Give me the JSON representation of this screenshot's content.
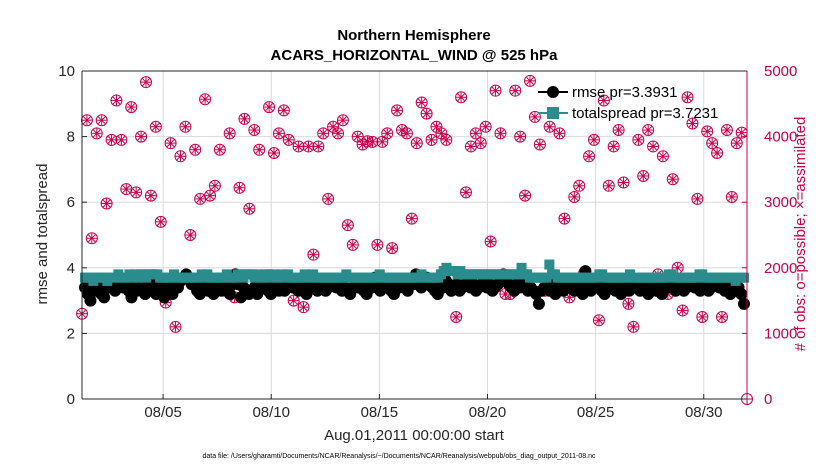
{
  "chart_data": {
    "type": "line",
    "title": "Northern Hemisphere",
    "subtitle": "ACARS_HORIZONTAL_WIND @ 525 hPa",
    "xlabel": "Aug.01,2011 00:00:00 start",
    "ylabel": "rmse and totalspread",
    "ylabel_right": "# of obs: o=possible; ×=assimilated",
    "footnote": "data file: /Users/gharamti/Documents/NCAR/Reanalysis/~/Documents/NCAR/Reanalysis/webpub/obs_diag_output_2011-08.nc",
    "xlim": [
      "2011-08-01 06:00",
      "2011-09-01 00:00"
    ],
    "ylim": [
      0,
      10
    ],
    "ylim_right": [
      0,
      5000
    ],
    "xticks": [
      "08/05",
      "08/10",
      "08/15",
      "08/20",
      "08/25",
      "08/30"
    ],
    "xtick_values": [
      "2011-08-05",
      "2011-08-10",
      "2011-08-15",
      "2011-08-20",
      "2011-08-25",
      "2011-08-30"
    ],
    "yticks": [
      "0",
      "2",
      "4",
      "6",
      "8",
      "10"
    ],
    "yticks_right": [
      "0",
      "1000",
      "2000",
      "3000",
      "4000",
      "5000"
    ],
    "grid": true,
    "legend_position": "top-right",
    "series": [
      {
        "name": "rmse pr=3.3931",
        "axis": "left",
        "color": "#000000",
        "marker": "circle",
        "values": [
          3.4,
          3.2,
          3.0,
          3.4,
          3.3,
          3.5,
          3.2,
          3.1,
          3.5,
          3.4,
          3.6,
          3.3,
          3.6,
          3.5,
          3.4,
          3.6,
          3.3,
          3.1,
          3.5,
          3.3,
          3.4,
          3.6,
          3.2,
          3.4,
          3.6,
          3.3,
          3.2,
          3.5,
          3.3,
          3.1,
          3.6,
          3.4,
          3.2,
          3.5,
          3.4,
          3.6,
          3.7,
          3.8,
          3.7,
          3.5,
          3.6,
          3.3,
          3.2,
          3.6,
          3.4,
          3.3,
          3.4,
          3.2,
          3.5,
          3.4,
          3.3,
          3.4,
          3.6,
          3.2,
          3.5,
          3.8,
          3.5,
          3.1,
          3.4,
          3.3,
          3.2,
          3.3,
          3.4,
          3.2,
          3.5,
          3.4,
          3.5,
          3.3,
          3.2,
          3.4,
          3.5,
          3.3,
          3.4,
          3.3,
          3.6,
          3.5,
          3.4,
          3.5,
          3.3,
          3.4,
          3.4,
          3.2,
          3.5,
          3.4,
          3.6,
          3.3,
          3.4,
          3.5,
          3.3,
          3.4,
          3.5,
          3.6,
          3.4,
          3.5,
          3.3,
          3.4,
          3.3,
          3.2,
          3.4,
          3.6,
          3.4,
          3.5,
          3.3,
          3.2,
          3.6,
          3.4,
          3.7,
          3.5,
          3.3,
          3.4,
          3.5,
          3.6,
          3.3,
          3.2,
          3.6,
          3.4,
          3.5,
          3.4,
          3.3,
          3.6,
          3.5,
          3.8,
          3.6,
          3.4,
          3.5,
          3.7,
          3.5,
          3.4,
          3.3,
          3.2,
          3.5,
          3.4,
          3.6,
          3.5,
          3.3,
          3.4,
          3.5,
          3.3,
          3.4,
          3.5,
          3.6,
          3.4,
          3.5,
          3.3,
          3.4,
          3.5,
          3.6,
          3.4,
          3.5,
          3.3,
          3.4,
          3.5,
          3.6,
          3.8,
          3.7,
          3.5,
          3.4,
          3.3,
          3.5,
          3.4,
          3.6,
          3.5,
          3.3,
          3.4,
          3.3,
          3.2,
          2.9,
          3.3,
          3.4,
          3.6,
          3.3,
          3.4,
          3.2,
          3.5,
          3.4,
          3.3,
          3.4,
          3.6,
          3.5,
          3.3,
          3.4,
          3.5,
          3.2,
          3.9,
          3.5,
          3.3,
          3.4,
          3.6,
          3.5,
          3.3,
          3.2,
          3.4,
          3.6,
          3.5,
          3.3,
          3.4,
          3.2,
          3.5,
          3.4,
          3.3,
          3.5,
          3.4,
          3.6,
          3.3,
          3.4,
          3.5,
          3.2,
          3.4,
          3.5,
          3.3,
          3.4,
          3.2,
          3.5,
          3.4,
          3.6,
          3.5,
          3.3,
          3.4,
          3.5,
          3.3,
          3.4,
          3.5,
          3.6,
          3.4,
          3.5,
          3.3,
          3.4,
          3.5,
          3.3,
          3.4,
          3.5,
          3.6,
          3.4,
          3.5,
          3.3,
          3.4,
          3.2,
          3.3,
          3.5,
          3.4,
          3.2,
          2.9
        ]
      },
      {
        "name": "totalspread pr=3.7231",
        "axis": "left",
        "color": "#2a8c8c",
        "marker": "square",
        "values": [
          3.7,
          3.7,
          3.7,
          3.6,
          3.7,
          3.7,
          3.7,
          3.7,
          3.6,
          3.7,
          3.7,
          3.7,
          3.8,
          3.7,
          3.7,
          3.7,
          3.8,
          3.7,
          3.8,
          3.7,
          3.8,
          3.8,
          3.7,
          3.8,
          3.8,
          3.8,
          3.8,
          3.7,
          3.7,
          3.7,
          3.7,
          3.7,
          3.8,
          3.7,
          3.7,
          3.7,
          3.7,
          3.7,
          3.7,
          3.7,
          3.7,
          3.7,
          3.8,
          3.7,
          3.8,
          3.7,
          3.7,
          3.7,
          3.7,
          3.7,
          3.7,
          3.8,
          3.7,
          3.7,
          3.7,
          3.8,
          3.8,
          3.7,
          3.8,
          3.8,
          3.8,
          3.7,
          3.8,
          3.7,
          3.7,
          3.8,
          3.8,
          3.7,
          3.8,
          3.7,
          3.7,
          3.8,
          3.7,
          3.8,
          3.7,
          3.7,
          3.7,
          3.7,
          3.7,
          3.8,
          3.7,
          3.7,
          3.8,
          3.7,
          3.7,
          3.7,
          3.7,
          3.7,
          3.7,
          3.7,
          3.7,
          3.7,
          3.7,
          3.7,
          3.8,
          3.7,
          3.7,
          3.7,
          3.7,
          3.7,
          3.7,
          3.7,
          3.7,
          3.7,
          3.7,
          3.7,
          3.8,
          3.7,
          3.7,
          3.7,
          3.7,
          3.7,
          3.7,
          3.7,
          3.7,
          3.7,
          3.7,
          3.7,
          3.7,
          3.7,
          3.7,
          3.8,
          3.7,
          3.7,
          3.7,
          3.7,
          3.7,
          3.7,
          3.8,
          3.9,
          4.0,
          3.9,
          3.9,
          3.9,
          3.8,
          3.9,
          3.8,
          3.8,
          3.8,
          3.8,
          3.8,
          3.8,
          3.8,
          3.8,
          3.8,
          3.8,
          3.8,
          3.8,
          3.8,
          3.8,
          3.8,
          3.8,
          3.8,
          3.8,
          3.8,
          3.8,
          3.8,
          4.0,
          3.8,
          3.8,
          3.7,
          3.7,
          3.7,
          3.7,
          3.7,
          3.7,
          3.7,
          4.1,
          3.8,
          3.8,
          3.7,
          3.7,
          3.7,
          3.7,
          3.7,
          3.7,
          3.7,
          3.7,
          3.7,
          3.7,
          3.7,
          3.7,
          3.7,
          3.7,
          3.7,
          3.8,
          3.8,
          3.7,
          3.7,
          3.7,
          3.7,
          3.7,
          3.7,
          3.7,
          3.7,
          3.7,
          3.8,
          3.7,
          3.7,
          3.7,
          3.7,
          3.7,
          3.7,
          3.7,
          3.7,
          3.7,
          3.7,
          3.7,
          3.7,
          3.7,
          3.8,
          3.8,
          3.7,
          3.7,
          3.7,
          3.7,
          3.7,
          3.7,
          3.7,
          3.7,
          3.7,
          3.8,
          3.8,
          3.7,
          3.7,
          3.7,
          3.7,
          3.7,
          3.7,
          3.7,
          3.7,
          3.7,
          3.7,
          3.7,
          3.6,
          3.7,
          3.7,
          3.7
        ]
      }
    ],
    "obs_series": [
      {
        "name": "possible",
        "axis": "right",
        "color": "#c8004a",
        "marker": "circle-open",
        "values": [
          1300,
          4250,
          2450,
          4050,
          4250,
          2980,
          3950,
          4550,
          3950,
          3200,
          4450,
          3150,
          4000,
          4830,
          3100,
          4150,
          2700,
          1470,
          3900,
          1100,
          3700,
          4150,
          2500,
          3800,
          3050,
          4570,
          3100,
          3250,
          3800,
          1850,
          4050,
          1550,
          3220,
          4270,
          2900,
          4100,
          3800,
          1700,
          4450,
          3750,
          4050,
          4400,
          3950,
          1500,
          3850,
          1400,
          3850,
          2200,
          3850,
          4050,
          3050,
          4150,
          4050,
          4250,
          2650,
          2350,
          4000,
          3880,
          3930,
          3920,
          2350,
          3920,
          4050,
          2300,
          4400,
          4100,
          4050,
          2750,
          3900,
          4520,
          4350,
          3950,
          4150,
          4050,
          3950,
          1650,
          1250,
          4600,
          3150,
          3850,
          4050,
          3900,
          4150,
          2400,
          4700,
          4050,
          1600,
          1600,
          4700,
          4000,
          3100,
          4850,
          4300,
          3880,
          1650,
          4150,
          1650,
          4050,
          2750,
          1550,
          3080,
          3250,
          1920,
          3700,
          3950,
          1200,
          4550,
          3250,
          3850,
          4100,
          3300,
          1450,
          1100,
          3950,
          3400,
          4100,
          3850,
          1900,
          3700,
          1600,
          3350,
          2000,
          1350,
          4600,
          4200,
          3050,
          1250,
          4080,
          3900,
          3750,
          1250,
          4100,
          3080,
          3900,
          4060
        ]
      },
      {
        "name": "assimilated",
        "axis": "right",
        "color": "#c8004a",
        "marker": "asterisk",
        "values": [
          1300,
          4250,
          2450,
          4050,
          4250,
          2980,
          3950,
          4550,
          3950,
          3200,
          4450,
          3150,
          4000,
          4830,
          3100,
          4150,
          2700,
          1470,
          3900,
          1100,
          3700,
          4150,
          2500,
          3800,
          3050,
          4570,
          3100,
          3250,
          3800,
          1850,
          4050,
          1550,
          3220,
          4270,
          2900,
          4100,
          3800,
          1700,
          4450,
          3750,
          4050,
          4400,
          3950,
          1500,
          3850,
          1400,
          3850,
          2200,
          3850,
          4050,
          3050,
          4150,
          4050,
          4250,
          2650,
          2350,
          4000,
          3880,
          3930,
          3920,
          2350,
          3920,
          4050,
          2300,
          4400,
          4100,
          4050,
          2750,
          3900,
          4520,
          4350,
          3950,
          4150,
          4050,
          3950,
          1650,
          1250,
          4600,
          3150,
          3850,
          4050,
          3900,
          4150,
          2400,
          4700,
          4050,
          1600,
          1600,
          4700,
          4000,
          3100,
          4850,
          4300,
          3880,
          1650,
          4150,
          1650,
          4050,
          2750,
          1550,
          3080,
          3250,
          1920,
          3700,
          3950,
          1200,
          4550,
          3250,
          3850,
          4100,
          3300,
          1450,
          1100,
          3950,
          3400,
          4100,
          3850,
          1900,
          3700,
          1600,
          3350,
          2000,
          1350,
          4600,
          4200,
          3050,
          1250,
          4080,
          3900,
          3750,
          1250,
          4100,
          3080,
          3900,
          4060
        ]
      }
    ],
    "last_obs_value": 0
  },
  "colors": {
    "rmse": "#000000",
    "totalspread": "#2a8c8c",
    "obs": "#c8004a",
    "grid": "#d9d9d9",
    "axis": "#262626"
  }
}
